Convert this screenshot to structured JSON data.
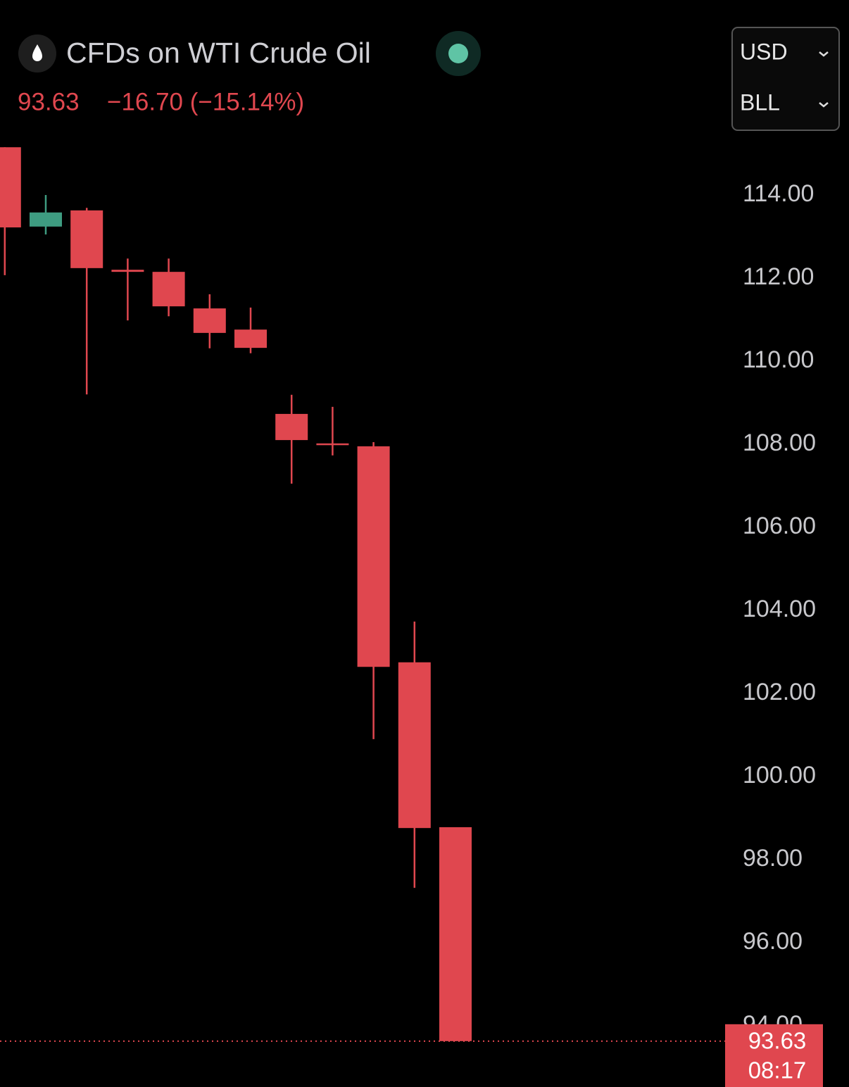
{
  "chart_data": {
    "type": "candlestick",
    "title": "CFDs on WTI Crude Oil",
    "price": "93.63",
    "change": "−16.70 (−15.14%)",
    "currency": "USD",
    "unit": "BLL",
    "countdown": "08:17",
    "series": [
      {
        "open": [
          115.15,
          113.24,
          113.63,
          112.2,
          112.15,
          111.27,
          110.76,
          108.73,
          108.02,
          107.95,
          102.75,
          98.78
        ],
        "high": [
          115.15,
          114.0,
          113.69,
          112.47,
          112.47,
          111.61,
          111.29,
          109.19,
          108.9,
          108.05,
          103.73,
          98.78
        ],
        "low": [
          112.07,
          113.05,
          109.2,
          110.98,
          111.08,
          110.31,
          110.19,
          107.05,
          107.73,
          100.9,
          97.32,
          93.63
        ],
        "close": [
          113.22,
          113.58,
          112.24,
          112.15,
          111.32,
          110.68,
          110.32,
          108.1,
          107.98,
          102.64,
          98.76,
          93.63
        ]
      }
    ],
    "up_color": "#3e9c81",
    "down_color": "#e0474f",
    "ylim": [
      92.5,
      115.5
    ],
    "yticks": [
      {
        "value": 94,
        "label": "94.00"
      },
      {
        "value": 96,
        "label": "96.00"
      },
      {
        "value": 98,
        "label": "98.00"
      },
      {
        "value": 100,
        "label": "100.00"
      },
      {
        "value": 102,
        "label": "102.00"
      },
      {
        "value": 104,
        "label": "104.00"
      },
      {
        "value": 106,
        "label": "106.00"
      },
      {
        "value": 108,
        "label": "108.00"
      },
      {
        "value": 110,
        "label": "110.00"
      },
      {
        "value": 112,
        "label": "112.00"
      },
      {
        "value": 114,
        "label": "114.00"
      }
    ]
  }
}
